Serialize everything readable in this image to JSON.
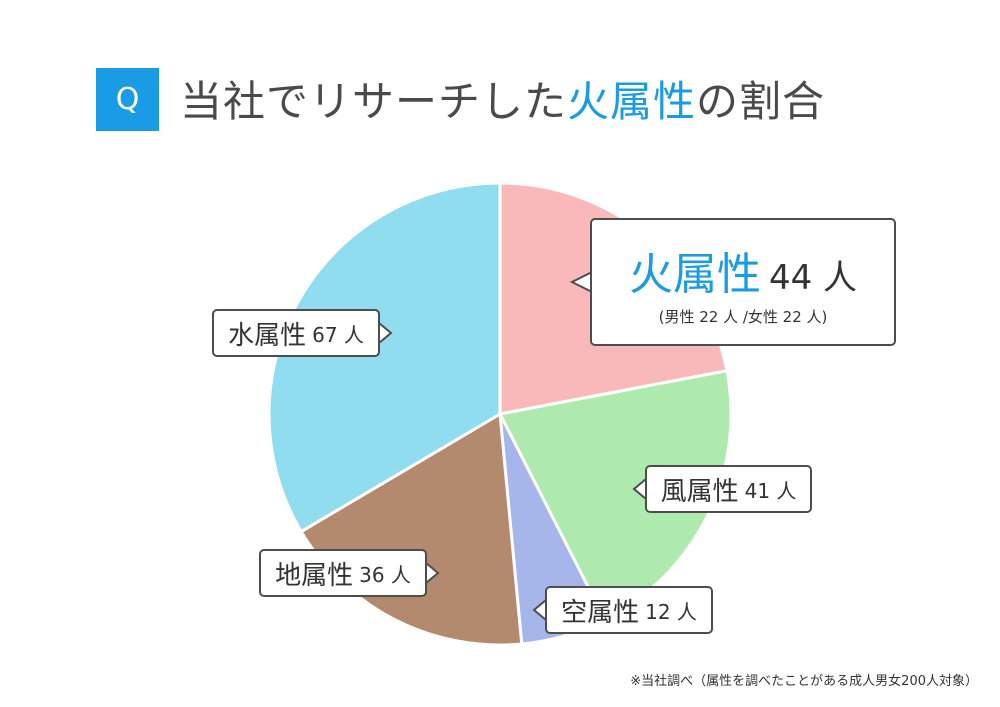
{
  "header": {
    "badge": "Q",
    "title_prefix": "当社でリサーチした",
    "title_highlight": "火属性",
    "title_suffix": "の割合"
  },
  "colors": {
    "accent": "#1a9be6",
    "fire": "#f9b9ba",
    "wind": "#aeeaae",
    "sky": "#a6b5ea",
    "earth": "#b38a6e",
    "water": "#91ddf0"
  },
  "chart_data": {
    "type": "pie",
    "unit": "人",
    "slices": [
      {
        "name": "火属性",
        "value": 44,
        "color": "#f9b9ba",
        "detail": "(男性 22 人 /女性 22 人)"
      },
      {
        "name": "風属性",
        "value": 41,
        "color": "#aeeaae"
      },
      {
        "name": "空属性",
        "value": 12,
        "color": "#a6b5ea"
      },
      {
        "name": "地属性",
        "value": 36,
        "color": "#b38a6e"
      },
      {
        "name": "水属性",
        "value": 67,
        "color": "#91ddf0"
      }
    ],
    "start": "12 o'clock",
    "direction": "clockwise",
    "legend": "callouts"
  },
  "labels": {
    "fire": {
      "name": "火属性",
      "count": "44 人",
      "sub": "(男性 22 人 /女性 22 人)"
    },
    "wind": {
      "name": "風属性",
      "count": "41 人"
    },
    "sky": {
      "name": "空属性",
      "count": "12 人"
    },
    "earth": {
      "name": "地属性",
      "count": "36 人"
    },
    "water": {
      "name": "水属性",
      "count": "67 人"
    }
  },
  "footnote": "※当社調べ（属性を調べたことがある成人男女200人対象）"
}
